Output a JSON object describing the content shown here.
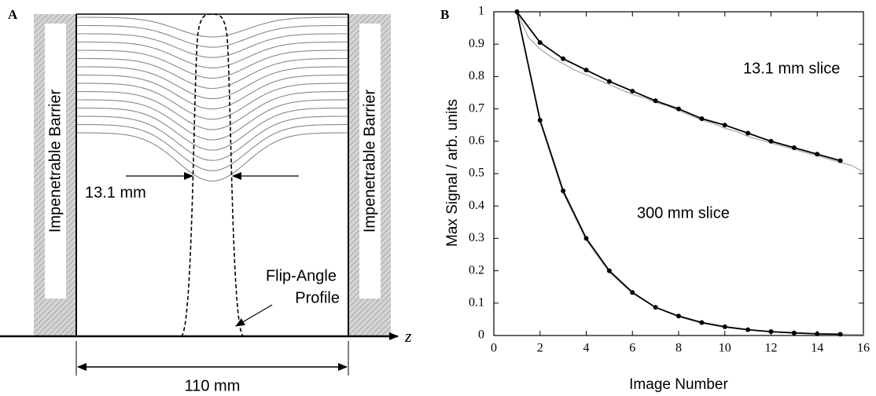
{
  "panel_a": {
    "label": "A",
    "barrier_left": "Impenetrable Barrier",
    "barrier_right": "Impenetrable Barrier",
    "width_label": "13.1 mm",
    "profile_label": [
      "Flip-Angle",
      "Profile"
    ],
    "axis_label": "z",
    "span_label": "110 mm"
  },
  "chart_data": {
    "type": "line",
    "panel_label": "B",
    "xlabel": "Image Number",
    "ylabel": "Max Signal / arb. units",
    "xlim": [
      0,
      16
    ],
    "ylim": [
      0,
      1
    ],
    "xticks": [
      0,
      2,
      4,
      6,
      8,
      10,
      12,
      14,
      16
    ],
    "yticks": [
      0,
      0.1,
      0.2,
      0.3,
      0.4,
      0.5,
      0.6,
      0.7,
      0.8,
      0.9,
      1
    ],
    "annotations": [
      "13.1 mm slice",
      "300 mm slice"
    ],
    "series": [
      {
        "color": "#aaaaaa",
        "markers": false,
        "line": true,
        "x": [
          1,
          1.5,
          2,
          2.5,
          3,
          3.5,
          4,
          4.5,
          5,
          5.5,
          6,
          6.5,
          7,
          7.5,
          8,
          8.5,
          9,
          9.5,
          10,
          10.5,
          11,
          11.5,
          12,
          12.5,
          13,
          13.5,
          14,
          14.5,
          15,
          15.5,
          16
        ],
        "values": [
          1.0,
          0.92,
          0.885,
          0.86,
          0.84,
          0.82,
          0.805,
          0.79,
          0.775,
          0.76,
          0.745,
          0.735,
          0.72,
          0.71,
          0.695,
          0.68,
          0.665,
          0.655,
          0.64,
          0.63,
          0.615,
          0.605,
          0.595,
          0.585,
          0.575,
          0.565,
          0.555,
          0.545,
          0.535,
          0.525,
          0.505
        ]
      },
      {
        "color": "#aaaaaa",
        "markers": false,
        "line": true,
        "x": [
          1,
          2,
          3,
          4,
          5,
          6,
          7,
          8,
          9,
          10,
          11,
          12,
          13,
          14,
          15,
          16
        ],
        "values": [
          1.0,
          0.66,
          0.44,
          0.295,
          0.195,
          0.13,
          0.087,
          0.058,
          0.038,
          0.025,
          0.017,
          0.011,
          0.008,
          0.005,
          0.004,
          0.003
        ]
      },
      {
        "color": "#000000",
        "markers": true,
        "line": true,
        "x": [
          1,
          2,
          3,
          4,
          5,
          6,
          7,
          8,
          9,
          10,
          11,
          12,
          13,
          14,
          15
        ],
        "values": [
          1.0,
          0.905,
          0.855,
          0.82,
          0.785,
          0.755,
          0.725,
          0.7,
          0.67,
          0.65,
          0.625,
          0.6,
          0.58,
          0.56,
          0.54
        ]
      },
      {
        "color": "#000000",
        "markers": true,
        "line": true,
        "x": [
          1,
          2,
          3,
          4,
          5,
          6,
          7,
          8,
          9,
          10,
          11,
          12,
          13,
          14,
          15
        ],
        "values": [
          1.0,
          0.665,
          0.447,
          0.3,
          0.2,
          0.133,
          0.087,
          0.06,
          0.04,
          0.027,
          0.018,
          0.012,
          0.008,
          0.005,
          0.004
        ]
      }
    ]
  }
}
